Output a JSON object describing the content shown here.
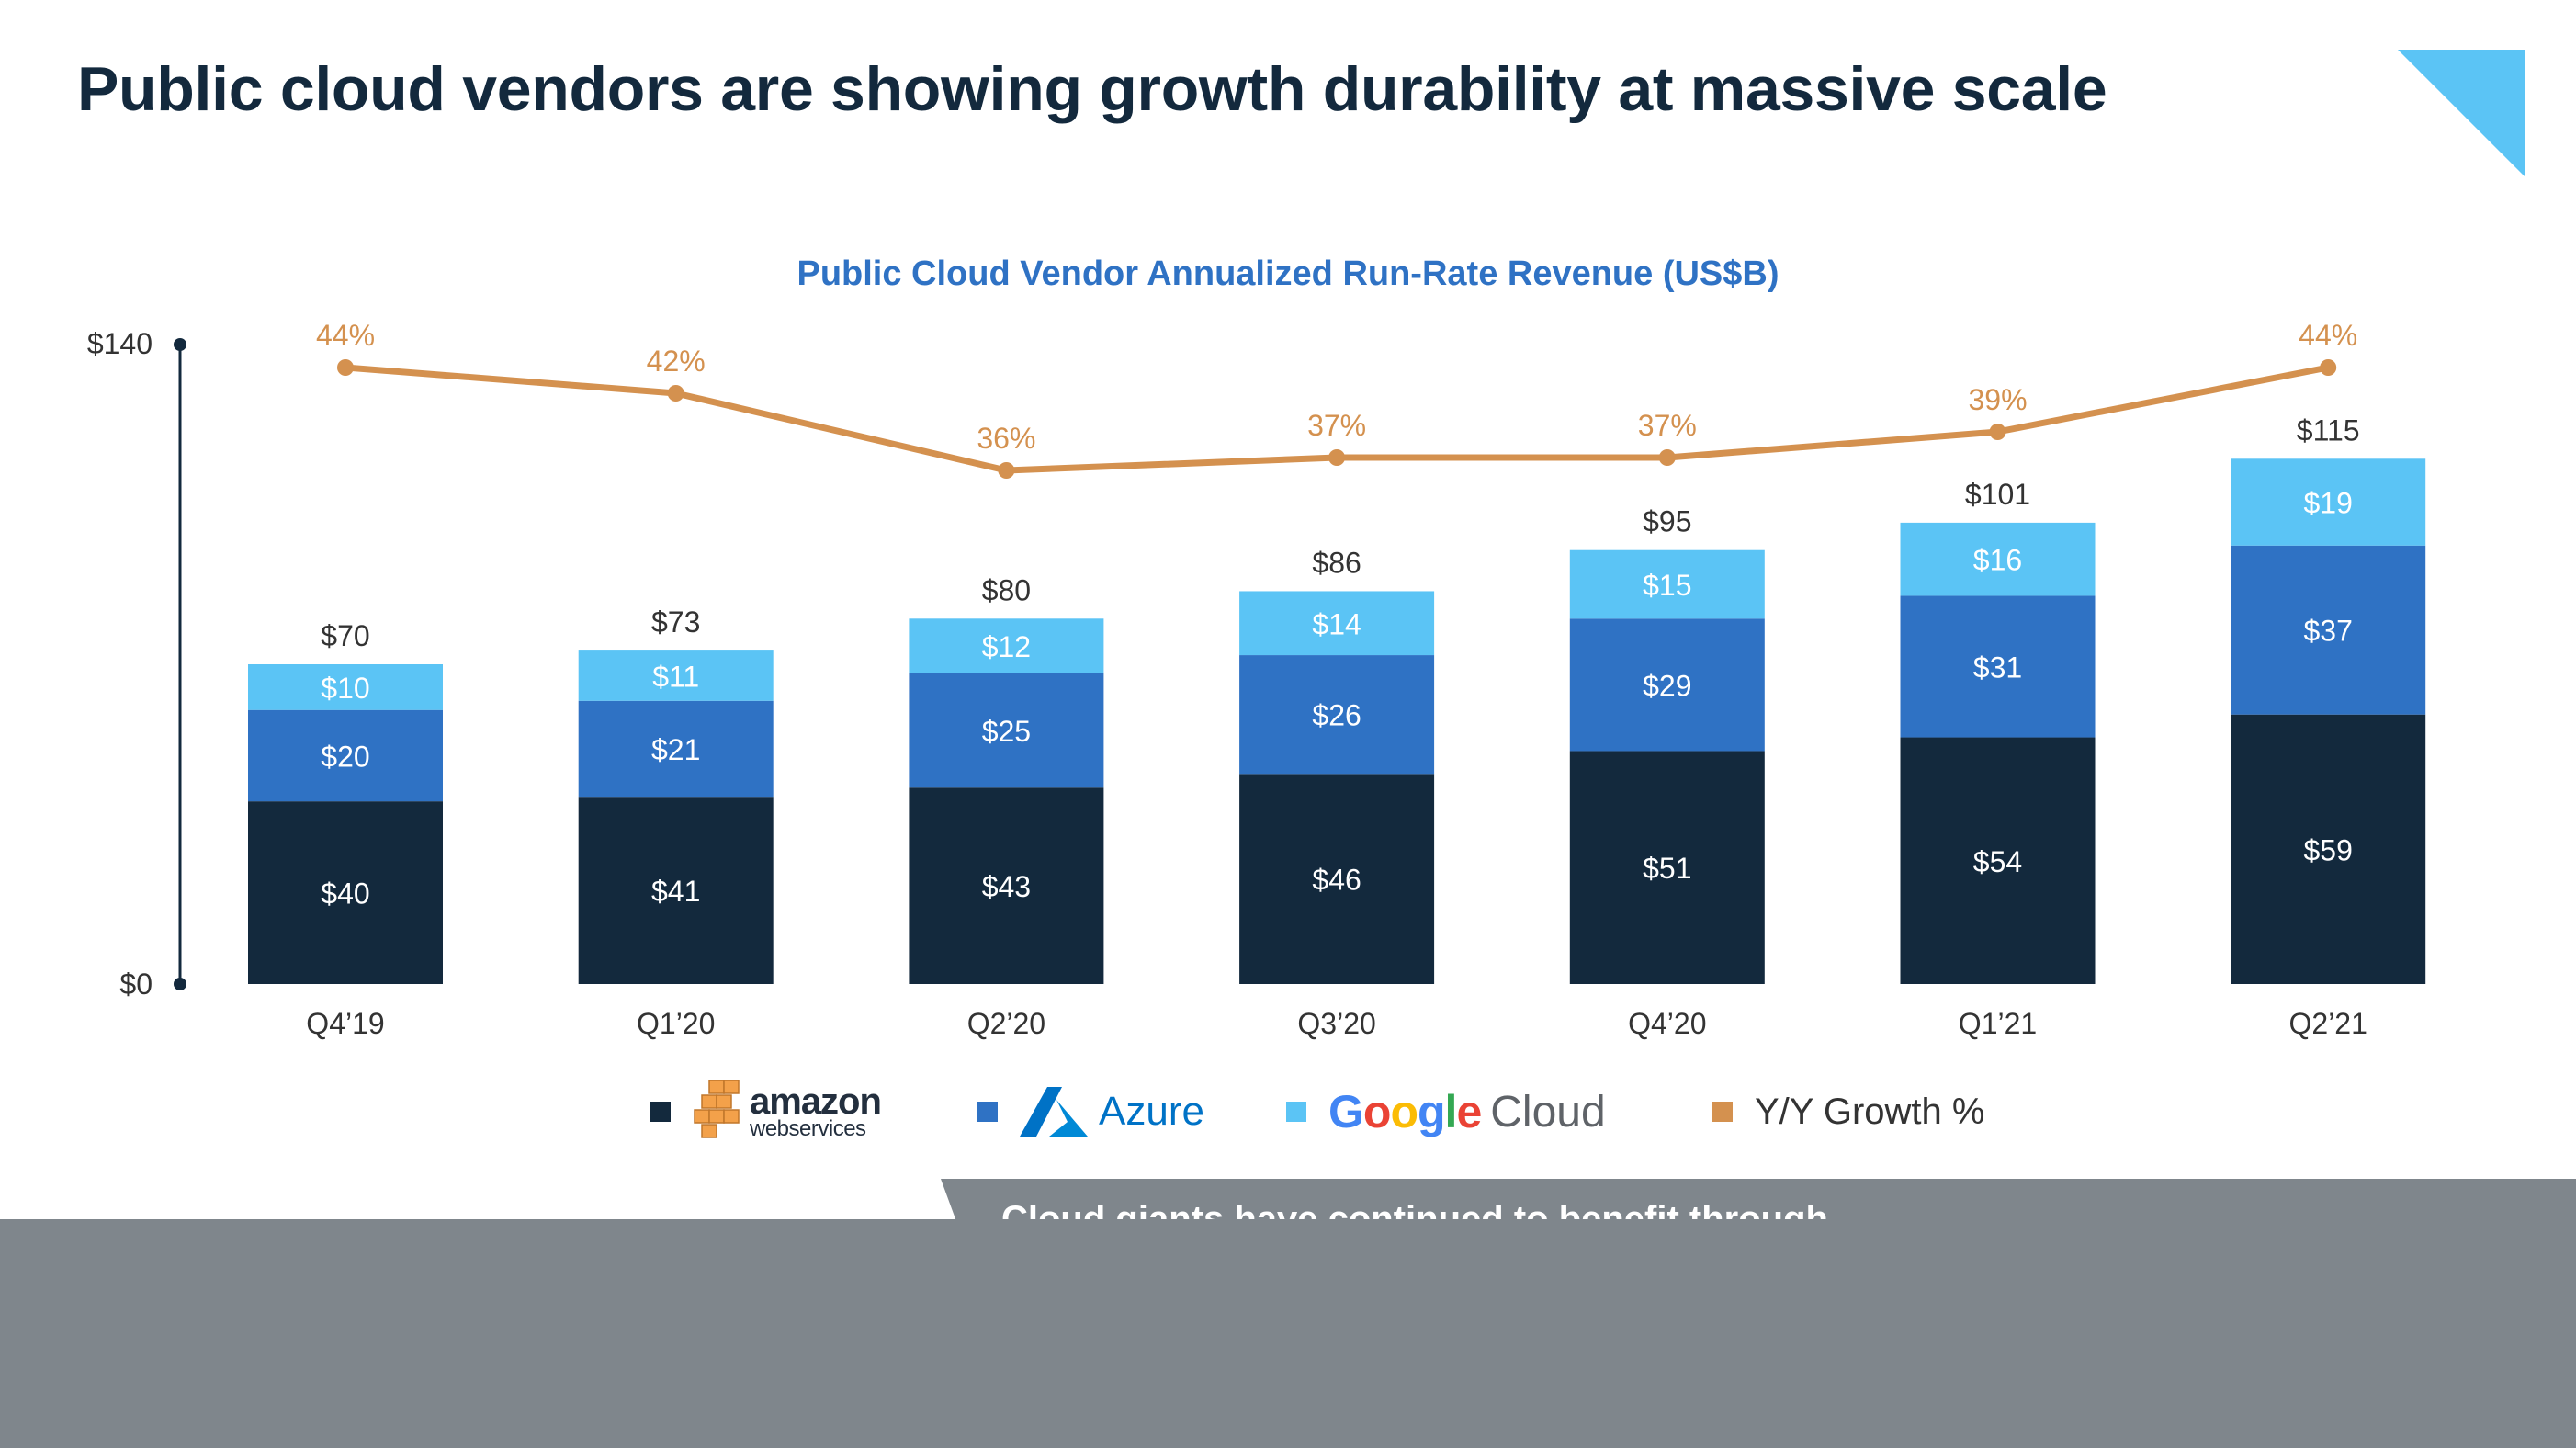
{
  "slide": {
    "title": "Public cloud vendors are showing growth durability at massive scale",
    "accent_color": "#5bc4f5",
    "banner_text": "Cloud giants have continued to benefit through"
  },
  "chart_data": {
    "type": "bar",
    "stacked": true,
    "title": "Public Cloud Vendor Annualized Run-Rate Revenue (US$B)",
    "categories": [
      "Q4’19",
      "Q1’20",
      "Q2’20",
      "Q3’20",
      "Q4’20",
      "Q1’21",
      "Q2’21"
    ],
    "ylim": [
      0,
      140
    ],
    "y_tick_labels": [
      "$140",
      "$0"
    ],
    "series": [
      {
        "key": "aws",
        "values": [
          40,
          41,
          43,
          46,
          51,
          54,
          59
        ],
        "labels": [
          "$40",
          "$41",
          "$43",
          "$46",
          "$51",
          "$54",
          "$59"
        ],
        "color": "#13293d"
      },
      {
        "key": "azure",
        "values": [
          20,
          21,
          25,
          26,
          29,
          31,
          37
        ],
        "labels": [
          "$20",
          "$21",
          "$25",
          "$26",
          "$29",
          "$31",
          "$37"
        ],
        "color": "#2f72c4"
      },
      {
        "key": "google",
        "values": [
          10,
          11,
          12,
          14,
          15,
          16,
          19
        ],
        "labels": [
          "$10",
          "$11",
          "$12",
          "$14",
          "$15",
          "$16",
          "$19"
        ],
        "color": "#5bc4f5"
      }
    ],
    "totals": [
      "$70",
      "$73",
      "$80",
      "$86",
      "$95",
      "$101",
      "$115"
    ],
    "growth_line": {
      "name": "Y/Y Growth %",
      "values": [
        44,
        42,
        36,
        37,
        37,
        39,
        44
      ],
      "labels": [
        "44%",
        "42%",
        "36%",
        "37%",
        "37%",
        "39%",
        "44%"
      ],
      "color": "#d4914f"
    },
    "legend": {
      "aws_word": "amazon",
      "aws_sub": "webservices",
      "azure": "Azure",
      "google_letters": [
        {
          "ch": "G",
          "color": "#4285f4"
        },
        {
          "ch": "o",
          "color": "#ea4335"
        },
        {
          "ch": "o",
          "color": "#fbbc05"
        },
        {
          "ch": "g",
          "color": "#4285f4"
        },
        {
          "ch": "l",
          "color": "#34a853"
        },
        {
          "ch": "e",
          "color": "#ea4335"
        }
      ],
      "google_suffix": "Cloud",
      "growth": "Y/Y Growth %"
    }
  }
}
